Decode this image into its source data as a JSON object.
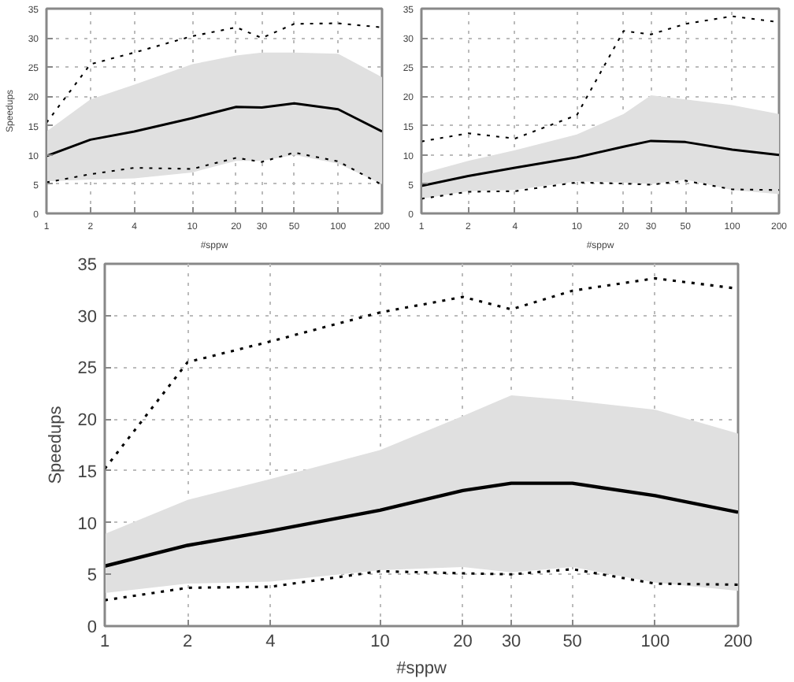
{
  "chart_data": [
    {
      "type": "line",
      "log": "x",
      "xlabel": "#sppw",
      "ylabel": "Speedups",
      "x": [
        1,
        2,
        4,
        10,
        20,
        30,
        50,
        100,
        200
      ],
      "xlim": [
        1,
        200
      ],
      "xticks": [
        1,
        2,
        4,
        10,
        20,
        30,
        50,
        100,
        200
      ],
      "ylim": [
        0,
        35
      ],
      "yticks": [
        0,
        5,
        10,
        15,
        20,
        25,
        30,
        35
      ],
      "grid": true,
      "series": [
        {
          "color": "#000000",
          "line_style": "solid",
          "values": [
            9.8,
            12.6,
            14,
            16.3,
            18.2,
            18.1,
            18.8,
            17.8,
            14
          ],
          "lower": [
            5.5,
            5.8,
            6,
            7,
            9,
            9,
            10,
            8.5,
            5
          ],
          "upper": [
            14,
            19.5,
            22,
            25.5,
            27,
            27.5,
            27.5,
            27.3,
            23.3
          ]
        },
        {
          "color": "#000000",
          "line_style": "dotted",
          "values": [
            15.5,
            25.5,
            27.5,
            30.3,
            31.8,
            30,
            32.4,
            32.5,
            31.8
          ]
        },
        {
          "color": "#000000",
          "line_style": "dotted",
          "values": [
            5.3,
            6.7,
            7.8,
            7.6,
            9.5,
            8.8,
            10.4,
            8.9,
            4.9
          ]
        }
      ]
    },
    {
      "type": "line",
      "log": "x",
      "xlabel": "#sppw",
      "x": [
        1,
        2,
        4,
        10,
        20,
        30,
        50,
        100,
        200
      ],
      "xlim": [
        1,
        200
      ],
      "xticks": [
        1,
        2,
        4,
        10,
        20,
        30,
        50,
        100,
        200
      ],
      "ylim": [
        0,
        35
      ],
      "yticks": [
        0,
        5,
        10,
        15,
        20,
        25,
        30,
        35
      ],
      "grid": true,
      "series": [
        {
          "color": "#000000",
          "line_style": "solid",
          "values": [
            4.7,
            6.4,
            7.8,
            9.6,
            11.4,
            12.4,
            12.2,
            10.9,
            10
          ],
          "lower": [
            2.5,
            3.8,
            4,
            5.5,
            5.3,
            5,
            5.8,
            4,
            3.3
          ],
          "upper": [
            6.8,
            9,
            10.8,
            13.5,
            17,
            20.2,
            19.5,
            18.5,
            17
          ]
        },
        {
          "color": "#000000",
          "line_style": "dotted",
          "values": [
            12.3,
            13.7,
            12.8,
            16.8,
            31.2,
            30.6,
            32.4,
            33.7,
            32.7
          ]
        },
        {
          "color": "#000000",
          "line_style": "dotted",
          "values": [
            2.5,
            3.7,
            3.8,
            5.3,
            5.1,
            4.9,
            5.6,
            4.1,
            4
          ]
        }
      ]
    },
    {
      "type": "line",
      "log": "x",
      "xlabel": "#sppw",
      "ylabel": "Speedups",
      "x": [
        1,
        2,
        4,
        10,
        20,
        30,
        50,
        100,
        200
      ],
      "xlim": [
        1,
        200
      ],
      "xticks": [
        1,
        2,
        4,
        10,
        20,
        30,
        50,
        100,
        200
      ],
      "ylim": [
        0,
        35
      ],
      "yticks": [
        0,
        5,
        10,
        15,
        20,
        25,
        30,
        35
      ],
      "grid": true,
      "series": [
        {
          "color": "#000000",
          "line_style": "solid",
          "values": [
            5.8,
            7.8,
            9.2,
            11.2,
            13.1,
            13.8,
            13.8,
            12.6,
            11.0
          ],
          "lower": [
            3.2,
            4.1,
            4.3,
            5.4,
            5.7,
            5.2,
            5.7,
            4.2,
            3.4
          ],
          "upper": [
            8.9,
            12.2,
            14.2,
            17,
            20.3,
            22.3,
            21.8,
            20.9,
            18.6
          ]
        },
        {
          "color": "#000000",
          "line_style": "dotted",
          "values": [
            15.2,
            25.5,
            27.5,
            30.3,
            31.8,
            30.6,
            32.4,
            33.6,
            32.6
          ]
        },
        {
          "color": "#000000",
          "line_style": "dotted",
          "values": [
            2.5,
            3.7,
            3.8,
            5.3,
            5.1,
            5.0,
            5.5,
            4.1,
            4.0
          ]
        }
      ]
    }
  ]
}
